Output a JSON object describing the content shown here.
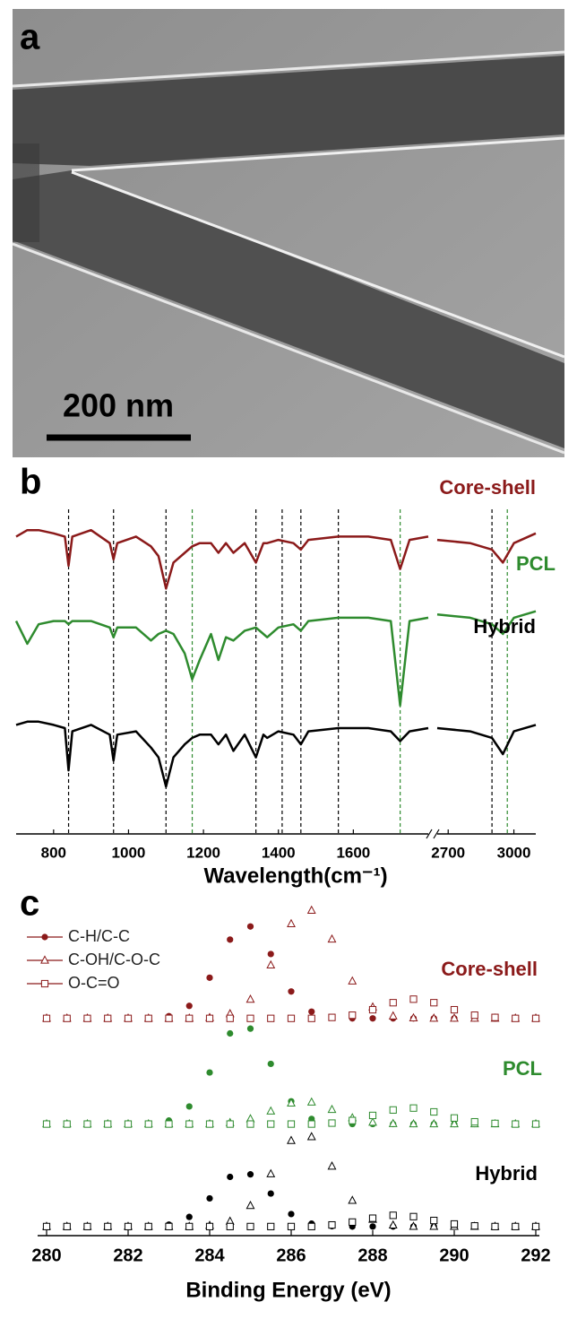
{
  "panel_a": {
    "label": "a",
    "scale_bar": "200 nm"
  },
  "chart_data": [
    {
      "type": "line",
      "panel_label": "b",
      "x_label": "Wavelength(cm⁻¹)",
      "xlim": [
        700,
        3100
      ],
      "xbreak": [
        1800,
        2650
      ],
      "xticks": [
        800,
        1000,
        1200,
        1400,
        1600,
        2700,
        3000
      ],
      "ylim": [
        0,
        100
      ],
      "x": [
        700,
        730,
        760,
        800,
        830,
        840,
        850,
        900,
        950,
        960,
        970,
        1020,
        1060,
        1080,
        1100,
        1120,
        1150,
        1170,
        1190,
        1220,
        1240,
        1260,
        1280,
        1310,
        1340,
        1360,
        1370,
        1400,
        1440,
        1460,
        1480,
        1560,
        1640,
        1700,
        1725,
        1750,
        1800,
        2200,
        2650,
        2800,
        2900,
        2950,
        3000,
        3100
      ],
      "series": [
        {
          "name": "Core-shell",
          "color": "#8b1a1a",
          "values": [
            88,
            90,
            90,
            89,
            88,
            79,
            88,
            90,
            86,
            81,
            86,
            88,
            85,
            82,
            72,
            80,
            83,
            85,
            86,
            86,
            83,
            86,
            83,
            86,
            80,
            86,
            86,
            87,
            86,
            84,
            87,
            88,
            88,
            87,
            78,
            87,
            88,
            null,
            87,
            86,
            84,
            80,
            86,
            89
          ]
        },
        {
          "name": "PCL",
          "color": "#2e8b2e",
          "values": [
            62,
            55,
            61,
            62,
            62,
            61,
            62,
            62,
            60,
            57,
            60,
            60,
            56,
            58,
            59,
            58,
            52,
            44,
            50,
            58,
            50,
            57,
            56,
            59,
            60,
            58,
            57,
            60,
            61,
            59,
            62,
            63,
            63,
            62,
            36,
            62,
            63,
            null,
            64,
            63,
            61,
            58,
            63,
            65
          ]
        },
        {
          "name": "Hybrid",
          "color": "#000000",
          "values": [
            30,
            31,
            31,
            30,
            29,
            16,
            28,
            30,
            27,
            19,
            27,
            28,
            23,
            20,
            11,
            20,
            24,
            26,
            27,
            27,
            24,
            27,
            22,
            27,
            20,
            27,
            26,
            28,
            27,
            24,
            28,
            29,
            29,
            28,
            25,
            28,
            29,
            null,
            29,
            28,
            26,
            21,
            28,
            30
          ]
        }
      ],
      "reference_lines": [
        {
          "x": 840,
          "color": "#000000"
        },
        {
          "x": 960,
          "color": "#000000"
        },
        {
          "x": 1100,
          "color": "#000000"
        },
        {
          "x": 1170,
          "color": "#2e8b2e"
        },
        {
          "x": 1340,
          "color": "#000000"
        },
        {
          "x": 1410,
          "color": "#000000"
        },
        {
          "x": 1460,
          "color": "#000000"
        },
        {
          "x": 1560,
          "color": "#000000"
        },
        {
          "x": 1725,
          "color": "#2e8b2e"
        },
        {
          "x": 2900,
          "color": "#000000"
        },
        {
          "x": 2970,
          "color": "#2e8b2e"
        }
      ]
    },
    {
      "type": "scatter",
      "panel_label": "c",
      "x_label": "Binding Energy (eV)",
      "xlim": [
        280,
        292
      ],
      "xticks": [
        280,
        282,
        284,
        286,
        288,
        290,
        292
      ],
      "ylim": [
        0,
        105
      ],
      "legend_position": "upper left",
      "series_styles": [
        {
          "name": "C-H/C-C",
          "marker": "circle-filled"
        },
        {
          "name": "C-OH/C-O-C",
          "marker": "triangle-open"
        },
        {
          "name": "O-C=O",
          "marker": "square-open"
        }
      ],
      "x": [
        280,
        280.5,
        281,
        281.5,
        282,
        282.5,
        283,
        283.5,
        284,
        284.5,
        285,
        285.5,
        286,
        286.5,
        287,
        287.5,
        288,
        288.5,
        289,
        289.5,
        290,
        290.5,
        291,
        291.5,
        292
      ],
      "groups": [
        {
          "name": "Core-shell",
          "color": "#8b1a1a",
          "series": [
            {
              "values": [
                67,
                67,
                67,
                67,
                67,
                67.1,
                67.7,
                70.9,
                79.7,
                91.6,
                95.7,
                87.1,
                75.4,
                69.1,
                67.3,
                67,
                67,
                67,
                67,
                67,
                67,
                67,
                67,
                67,
                67
              ]
            },
            {
              "values": [
                67,
                67,
                67,
                67,
                67,
                67,
                67,
                67,
                67.2,
                68.4,
                72.9,
                83.6,
                96.5,
                100.7,
                91.7,
                78.6,
                70.5,
                67.7,
                67.1,
                67,
                67,
                67,
                67,
                67,
                67
              ]
            },
            {
              "values": [
                67,
                67,
                67,
                67,
                67,
                67,
                67,
                67,
                67,
                67,
                67,
                67,
                67,
                67,
                67.3,
                68,
                69.7,
                71.9,
                73,
                71.9,
                69.7,
                68,
                67.3,
                67,
                67
              ]
            }
          ]
        },
        {
          "name": "PCL",
          "color": "#2e8b2e",
          "series": [
            {
              "values": [
                34,
                34,
                34,
                34,
                34,
                34.1,
                35.1,
                39.5,
                50.1,
                62.3,
                63.8,
                52.8,
                41.1,
                35.6,
                34.2,
                34,
                34,
                34,
                34,
                34,
                34,
                34,
                34,
                34,
                34
              ]
            },
            {
              "values": [
                34,
                34,
                34,
                34,
                34,
                34,
                34,
                34,
                34,
                34.4,
                35.6,
                38,
                40.5,
                40.8,
                38.5,
                35.9,
                34.5,
                34.1,
                34,
                34,
                34,
                34,
                34,
                34,
                34
              ]
            },
            {
              "values": [
                34,
                34,
                34,
                34,
                34,
                34,
                34,
                34,
                34,
                34,
                34,
                34,
                34,
                34,
                34.3,
                35.1,
                36.7,
                38.4,
                39,
                37.8,
                35.9,
                34.7,
                34.2,
                34,
                34
              ]
            }
          ]
        },
        {
          "name": "Hybrid",
          "color": "#000000",
          "series": [
            {
              "values": [
                2,
                2,
                2,
                2,
                2,
                2.1,
                2.6,
                5,
                10.8,
                17.5,
                18.3,
                12.3,
                5.9,
                2.9,
                2.1,
                2,
                2,
                2,
                2,
                2,
                2,
                2,
                2,
                2,
                2
              ]
            },
            {
              "values": [
                2,
                2,
                2,
                2,
                2,
                2,
                2,
                2,
                2.3,
                3.6,
                8.5,
                18.4,
                28.8,
                30,
                20.8,
                10.1,
                4.2,
                2.4,
                2,
                2,
                2,
                2,
                2,
                2,
                2
              ]
            },
            {
              "values": [
                2,
                2,
                2,
                2,
                2,
                2,
                2,
                2,
                2,
                2,
                2,
                2,
                2,
                2,
                2.5,
                3.4,
                4.6,
                5.5,
                5.1,
                3.9,
                2.8,
                2.2,
                2,
                2,
                2
              ]
            }
          ]
        }
      ]
    }
  ]
}
